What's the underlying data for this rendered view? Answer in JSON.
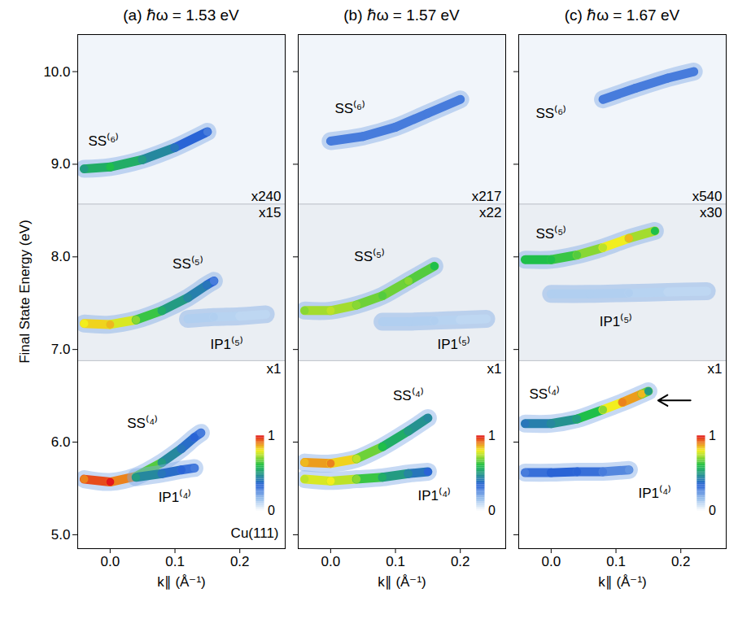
{
  "chart_data": [
    {
      "type": "band_map",
      "title": "(a) ℏω = 1.53 eV",
      "x_label": "k∥ (Å⁻¹)",
      "y_label": "Final State Energy (eV)",
      "xlim": [
        -0.05,
        0.27
      ],
      "ylim": [
        4.85,
        10.4
      ],
      "xticks": [
        {
          "value": 0,
          "label": "0.0"
        },
        {
          "value": 0.1,
          "label": "0.1"
        },
        {
          "value": 0.2,
          "label": "0.2"
        }
      ],
      "yticks": [
        {
          "value": 5,
          "label": "5.0"
        },
        {
          "value": 6,
          "label": "6.0"
        },
        {
          "value": 7,
          "label": "7.0"
        },
        {
          "value": 8,
          "label": "8.0"
        },
        {
          "value": 9,
          "label": "9.0"
        },
        {
          "value": 10,
          "label": "10.0"
        }
      ],
      "regions": [
        {
          "label": "x240",
          "ylim": [
            8.57,
            10.4
          ]
        },
        {
          "label": "x15",
          "ylim": [
            6.88,
            8.57
          ]
        },
        {
          "label": "x1",
          "ylim": [
            4.85,
            6.88
          ]
        }
      ],
      "series": [
        {
          "name": "SS⁽⁶⁾",
          "label_at": [
            -0.01,
            9.25
          ],
          "x": [
            -0.04,
            0,
            0.05,
            0.1,
            0.15
          ],
          "values": [
            8.95,
            8.97,
            9.05,
            9.18,
            9.35
          ],
          "intensity": [
            0.5,
            0.6,
            0.5,
            0.4,
            0.3
          ]
        },
        {
          "name": "SS⁽⁵⁾",
          "label_at": [
            0.12,
            7.92
          ],
          "x": [
            -0.04,
            0,
            0.04,
            0.08,
            0.12,
            0.15,
            0.16
          ],
          "values": [
            7.28,
            7.27,
            7.32,
            7.42,
            7.56,
            7.7,
            7.74
          ],
          "intensity": [
            0.8,
            0.85,
            0.7,
            0.55,
            0.45,
            0.4,
            0.3
          ]
        },
        {
          "name": "IP1⁽⁵⁾",
          "label_at": [
            0.18,
            7.05
          ],
          "x": [
            0.12,
            0.16,
            0.2,
            0.24
          ],
          "values": [
            7.33,
            7.35,
            7.36,
            7.38
          ],
          "intensity": [
            0.12,
            0.12,
            0.1,
            0.1
          ]
        },
        {
          "name": "SS⁽⁴⁾",
          "label_at": [
            0.05,
            6.2
          ],
          "x": [
            -0.04,
            0,
            0.04,
            0.08,
            0.11,
            0.13,
            0.14
          ],
          "values": [
            5.6,
            5.57,
            5.63,
            5.78,
            5.93,
            6.05,
            6.1
          ],
          "intensity": [
            0.9,
            1.0,
            0.8,
            0.5,
            0.4,
            0.35,
            0.3
          ]
        },
        {
          "name": "IP1⁽⁴⁾",
          "label_at": [
            0.1,
            5.4
          ],
          "x": [
            0.04,
            0.08,
            0.11,
            0.13
          ],
          "values": [
            5.62,
            5.66,
            5.7,
            5.72
          ],
          "intensity": [
            0.5,
            0.4,
            0.35,
            0.3
          ]
        }
      ],
      "annotations": [
        {
          "text": "Cu(111)",
          "x": 0.265,
          "y": 4.97
        }
      ],
      "colorbar": {
        "range": [
          0,
          1
        ],
        "ticks": [
          0,
          1
        ]
      }
    },
    {
      "type": "band_map",
      "title": "(b) ℏω = 1.57 eV",
      "x_label": "k∥ (Å⁻¹)",
      "xlim": [
        -0.05,
        0.27
      ],
      "ylim": [
        4.85,
        10.4
      ],
      "xticks": [
        {
          "value": 0,
          "label": "0.0"
        },
        {
          "value": 0.1,
          "label": "0.1"
        },
        {
          "value": 0.2,
          "label": "0.2"
        }
      ],
      "yticks": [
        5,
        6,
        7,
        8,
        9,
        10
      ],
      "tick_labels": "x",
      "regions": [
        {
          "label": "x217",
          "ylim": [
            8.57,
            10.4
          ]
        },
        {
          "label": "x22",
          "ylim": [
            6.88,
            8.57
          ]
        },
        {
          "label": "x1",
          "ylim": [
            4.85,
            6.88
          ]
        }
      ],
      "series": [
        {
          "name": "SS⁽⁶⁾",
          "label_at": [
            0.03,
            9.6
          ],
          "x": [
            0,
            0.05,
            0.1,
            0.15,
            0.2
          ],
          "values": [
            9.25,
            9.3,
            9.4,
            9.55,
            9.7
          ],
          "intensity": [
            0.3,
            0.3,
            0.3,
            0.3,
            0.3
          ]
        },
        {
          "name": "SS⁽⁵⁾",
          "label_at": [
            0.06,
            8.0
          ],
          "x": [
            -0.04,
            0,
            0.04,
            0.08,
            0.12,
            0.16
          ],
          "values": [
            7.42,
            7.42,
            7.48,
            7.58,
            7.74,
            7.9
          ],
          "intensity": [
            0.7,
            0.75,
            0.7,
            0.65,
            0.7,
            0.6
          ]
        },
        {
          "name": "IP1⁽⁵⁾",
          "label_at": [
            0.19,
            7.05
          ],
          "x": [
            0.08,
            0.12,
            0.16,
            0.2,
            0.24
          ],
          "values": [
            7.3,
            7.3,
            7.31,
            7.32,
            7.33
          ],
          "intensity": [
            0.12,
            0.12,
            0.12,
            0.1,
            0.1
          ]
        },
        {
          "name": "SS⁽⁴⁾",
          "label_at": [
            0.12,
            6.5
          ],
          "x": [
            -0.04,
            0,
            0.04,
            0.08,
            0.12,
            0.15
          ],
          "values": [
            5.78,
            5.77,
            5.82,
            5.95,
            6.12,
            6.26
          ],
          "intensity": [
            0.85,
            0.9,
            0.75,
            0.6,
            0.5,
            0.45
          ]
        },
        {
          "name": "IP1⁽⁴⁾",
          "label_at": [
            0.16,
            5.42
          ],
          "x": [
            -0.04,
            0,
            0.04,
            0.08,
            0.12,
            0.15
          ],
          "values": [
            5.6,
            5.58,
            5.6,
            5.62,
            5.66,
            5.68
          ],
          "intensity": [
            0.75,
            0.8,
            0.7,
            0.55,
            0.45,
            0.35
          ]
        }
      ],
      "colorbar": {
        "range": [
          0,
          1
        ],
        "ticks": [
          0,
          1
        ]
      }
    },
    {
      "type": "band_map",
      "title": "(c) ℏω = 1.67 eV",
      "x_label": "k∥ (Å⁻¹)",
      "xlim": [
        -0.05,
        0.27
      ],
      "ylim": [
        4.85,
        10.4
      ],
      "xticks": [
        {
          "value": 0,
          "label": "0.0"
        },
        {
          "value": 0.1,
          "label": "0.1"
        },
        {
          "value": 0.2,
          "label": "0.2"
        }
      ],
      "yticks": [
        5,
        6,
        7,
        8,
        9,
        10
      ],
      "tick_labels": "x",
      "regions": [
        {
          "label": "x540",
          "ylim": [
            8.57,
            10.4
          ]
        },
        {
          "label": "x30",
          "ylim": [
            6.88,
            8.57
          ]
        },
        {
          "label": "x1",
          "ylim": [
            4.85,
            6.88
          ]
        }
      ],
      "series": [
        {
          "name": "SS⁽⁶⁾",
          "label_at": [
            0.0,
            9.55
          ],
          "x": [
            0.08,
            0.13,
            0.18,
            0.22
          ],
          "values": [
            9.7,
            9.82,
            9.93,
            10.0
          ],
          "intensity": [
            0.3,
            0.3,
            0.3,
            0.3
          ]
        },
        {
          "name": "SS⁽⁵⁾",
          "label_at": [
            0.0,
            8.25
          ],
          "x": [
            -0.04,
            0,
            0.04,
            0.08,
            0.12,
            0.16
          ],
          "values": [
            7.97,
            7.97,
            8.02,
            8.1,
            8.2,
            8.28
          ],
          "intensity": [
            0.6,
            0.6,
            0.65,
            0.75,
            0.85,
            0.6
          ]
        },
        {
          "name": "IP1⁽⁵⁾",
          "label_at": [
            0.1,
            7.3
          ],
          "x": [
            0,
            0.06,
            0.12,
            0.18,
            0.24
          ],
          "values": [
            7.6,
            7.6,
            7.61,
            7.62,
            7.63
          ],
          "intensity": [
            0.12,
            0.12,
            0.12,
            0.1,
            0.1
          ]
        },
        {
          "name": "SS⁽⁴⁾",
          "label_at": [
            -0.01,
            6.52
          ],
          "x": [
            -0.04,
            0,
            0.04,
            0.08,
            0.11,
            0.14,
            0.15
          ],
          "values": [
            6.2,
            6.2,
            6.25,
            6.35,
            6.43,
            6.52,
            6.55
          ],
          "intensity": [
            0.4,
            0.45,
            0.5,
            0.7,
            0.9,
            0.85,
            0.5
          ]
        },
        {
          "name": "IP1⁽⁴⁾",
          "label_at": [
            0.16,
            5.45
          ],
          "x": [
            -0.04,
            0,
            0.04,
            0.08,
            0.12
          ],
          "values": [
            5.67,
            5.67,
            5.68,
            5.68,
            5.7
          ],
          "intensity": [
            0.3,
            0.35,
            0.35,
            0.3,
            0.25
          ]
        }
      ],
      "arrow": {
        "x1": 0.215,
        "y1": 6.45,
        "x2": 0.165,
        "y2": 6.45
      },
      "colorbar": {
        "range": [
          0,
          1
        ],
        "ticks": [
          0,
          1
        ]
      }
    }
  ]
}
